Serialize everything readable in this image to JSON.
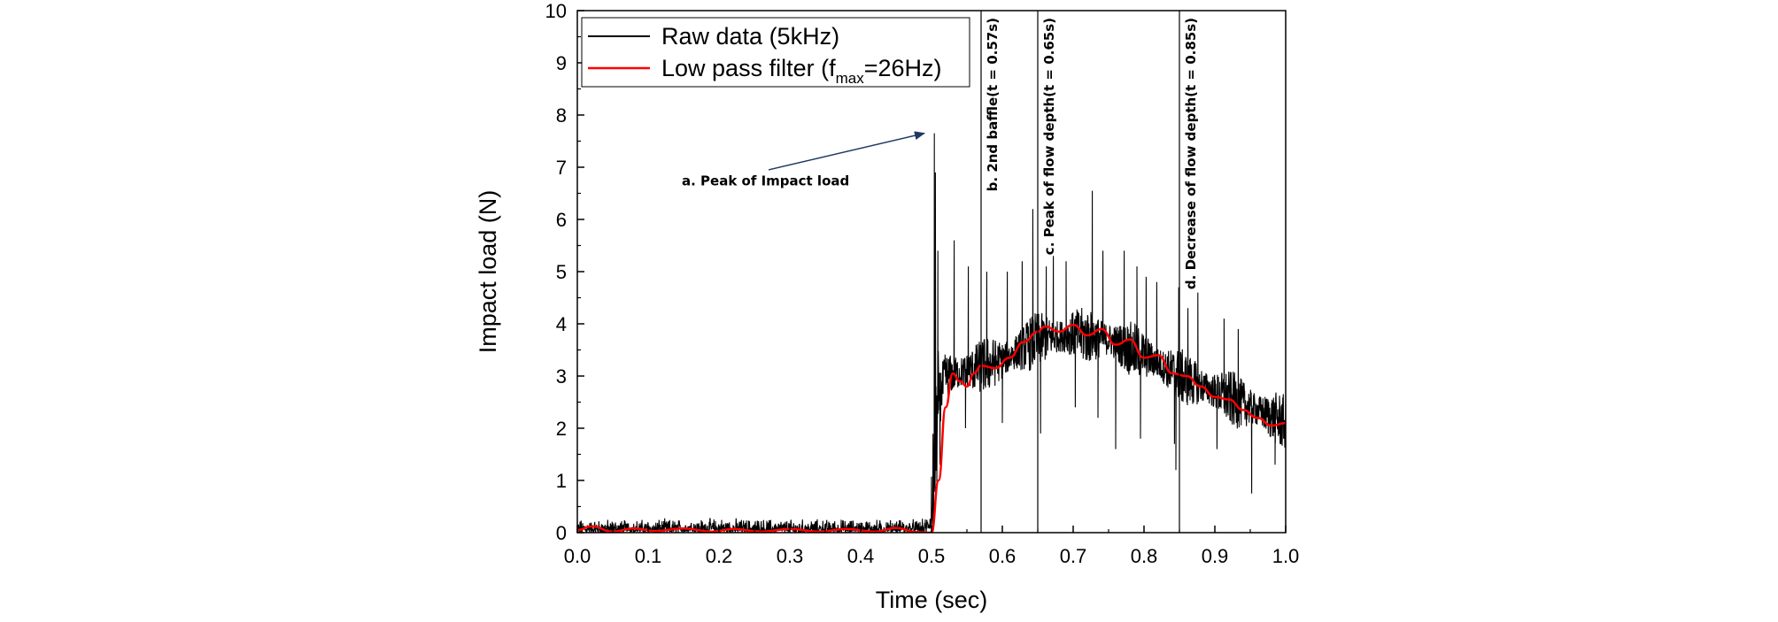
{
  "chart_data": {
    "type": "line",
    "xlabel": "Time (sec)",
    "ylabel": "Impact load (N)",
    "xlim": [
      0.0,
      1.0
    ],
    "ylim": [
      0,
      10
    ],
    "x_ticks": [
      "0.0",
      "0.1",
      "0.2",
      "0.3",
      "0.4",
      "0.5",
      "0.6",
      "0.7",
      "0.8",
      "0.9",
      "1.0"
    ],
    "y_ticks": [
      "0",
      "1",
      "2",
      "3",
      "4",
      "5",
      "6",
      "7",
      "8",
      "9",
      "10"
    ],
    "grid": false,
    "legend_position": "top-left",
    "legend": {
      "raw": "Raw data (5kHz)",
      "lpf_main": "Low pass filter (f",
      "lpf_sub": "max",
      "lpf_tail": "=26Hz)"
    },
    "series": [
      {
        "name": "Raw data (5kHz)",
        "color": "#000000",
        "envelope": [
          {
            "x": 0.0,
            "y": 0.1
          },
          {
            "x": 0.1,
            "y": 0.1
          },
          {
            "x": 0.2,
            "y": 0.12
          },
          {
            "x": 0.3,
            "y": 0.1
          },
          {
            "x": 0.4,
            "y": 0.1
          },
          {
            "x": 0.49,
            "y": 0.1
          },
          {
            "x": 0.5,
            "y": 0.3
          },
          {
            "x": 0.51,
            "y": 2.5
          },
          {
            "x": 0.52,
            "y": 3.0
          },
          {
            "x": 0.55,
            "y": 3.1
          },
          {
            "x": 0.6,
            "y": 3.3
          },
          {
            "x": 0.65,
            "y": 3.7
          },
          {
            "x": 0.7,
            "y": 3.8
          },
          {
            "x": 0.75,
            "y": 3.7
          },
          {
            "x": 0.8,
            "y": 3.4
          },
          {
            "x": 0.85,
            "y": 3.0
          },
          {
            "x": 0.9,
            "y": 2.7
          },
          {
            "x": 0.95,
            "y": 2.4
          },
          {
            "x": 1.0,
            "y": 2.1
          }
        ],
        "spikes": [
          {
            "x": 0.504,
            "y": 7.65
          },
          {
            "x": 0.5055,
            "y": 6.9
          },
          {
            "x": 0.509,
            "y": 5.4
          },
          {
            "x": 0.532,
            "y": 5.6
          },
          {
            "x": 0.552,
            "y": 5.1
          },
          {
            "x": 0.578,
            "y": 5.0
          },
          {
            "x": 0.607,
            "y": 5.0
          },
          {
            "x": 0.628,
            "y": 5.2
          },
          {
            "x": 0.643,
            "y": 6.2
          },
          {
            "x": 0.662,
            "y": 5.1
          },
          {
            "x": 0.672,
            "y": 5.3
          },
          {
            "x": 0.69,
            "y": 5.2
          },
          {
            "x": 0.727,
            "y": 6.55
          },
          {
            "x": 0.742,
            "y": 5.4
          },
          {
            "x": 0.772,
            "y": 5.4
          },
          {
            "x": 0.79,
            "y": 5.1
          },
          {
            "x": 0.803,
            "y": 4.9
          },
          {
            "x": 0.818,
            "y": 4.8
          },
          {
            "x": 0.849,
            "y": 4.7
          },
          {
            "x": 0.862,
            "y": 4.3
          },
          {
            "x": 0.876,
            "y": 4.6
          },
          {
            "x": 0.913,
            "y": 4.1
          },
          {
            "x": 0.933,
            "y": 3.9
          }
        ],
        "dips": [
          {
            "x": 0.512,
            "y": 1.3
          },
          {
            "x": 0.548,
            "y": 2.0
          },
          {
            "x": 0.6,
            "y": 2.1
          },
          {
            "x": 0.654,
            "y": 1.9
          },
          {
            "x": 0.703,
            "y": 2.4
          },
          {
            "x": 0.735,
            "y": 2.2
          },
          {
            "x": 0.76,
            "y": 1.6
          },
          {
            "x": 0.795,
            "y": 1.8
          },
          {
            "x": 0.843,
            "y": 1.7
          },
          {
            "x": 0.845,
            "y": 1.2
          },
          {
            "x": 0.903,
            "y": 1.6
          },
          {
            "x": 0.952,
            "y": 0.75
          },
          {
            "x": 0.985,
            "y": 1.3
          }
        ]
      },
      {
        "name": "Low pass filter (fmax=26Hz)",
        "color": "#ff0000",
        "points": [
          {
            "x": 0.0,
            "y": 0.05
          },
          {
            "x": 0.02,
            "y": 0.12
          },
          {
            "x": 0.05,
            "y": 0.02
          },
          {
            "x": 0.08,
            "y": 0.08
          },
          {
            "x": 0.11,
            "y": 0.03
          },
          {
            "x": 0.15,
            "y": 0.08
          },
          {
            "x": 0.19,
            "y": 0.02
          },
          {
            "x": 0.22,
            "y": 0.07
          },
          {
            "x": 0.26,
            "y": 0.02
          },
          {
            "x": 0.3,
            "y": 0.07
          },
          {
            "x": 0.34,
            "y": 0.02
          },
          {
            "x": 0.38,
            "y": 0.07
          },
          {
            "x": 0.42,
            "y": 0.02
          },
          {
            "x": 0.45,
            "y": 0.09
          },
          {
            "x": 0.48,
            "y": 0.01
          },
          {
            "x": 0.5,
            "y": 0.0
          },
          {
            "x": 0.51,
            "y": 1.0
          },
          {
            "x": 0.52,
            "y": 2.4
          },
          {
            "x": 0.53,
            "y": 3.05
          },
          {
            "x": 0.54,
            "y": 2.9
          },
          {
            "x": 0.55,
            "y": 2.8
          },
          {
            "x": 0.56,
            "y": 3.05
          },
          {
            "x": 0.57,
            "y": 3.2
          },
          {
            "x": 0.59,
            "y": 3.15
          },
          {
            "x": 0.61,
            "y": 3.35
          },
          {
            "x": 0.63,
            "y": 3.65
          },
          {
            "x": 0.65,
            "y": 3.85
          },
          {
            "x": 0.66,
            "y": 3.95
          },
          {
            "x": 0.68,
            "y": 3.85
          },
          {
            "x": 0.7,
            "y": 3.98
          },
          {
            "x": 0.72,
            "y": 3.78
          },
          {
            "x": 0.74,
            "y": 3.9
          },
          {
            "x": 0.76,
            "y": 3.6
          },
          {
            "x": 0.78,
            "y": 3.7
          },
          {
            "x": 0.8,
            "y": 3.35
          },
          {
            "x": 0.82,
            "y": 3.4
          },
          {
            "x": 0.84,
            "y": 3.05
          },
          {
            "x": 0.86,
            "y": 3.0
          },
          {
            "x": 0.88,
            "y": 2.8
          },
          {
            "x": 0.9,
            "y": 2.6
          },
          {
            "x": 0.92,
            "y": 2.55
          },
          {
            "x": 0.94,
            "y": 2.35
          },
          {
            "x": 0.96,
            "y": 2.2
          },
          {
            "x": 0.98,
            "y": 2.05
          },
          {
            "x": 1.0,
            "y": 2.1
          }
        ]
      }
    ],
    "vlines": [
      {
        "x": 0.57,
        "label": "b. 2nd baffle(t = 0.57s)"
      },
      {
        "x": 0.65,
        "label": "c. Peak of flow depth(t = 0.65s)"
      },
      {
        "x": 0.85,
        "label": "d. Decrease of flow depth(t = 0.85s)"
      }
    ],
    "annotation": {
      "text": "a. Peak of Impact load",
      "text_at": {
        "x": 0.27,
        "y": 6.65
      },
      "arrow_from": {
        "x": 0.27,
        "y": 6.95
      },
      "arrow_to": {
        "x": 0.49,
        "y": 7.65
      }
    }
  }
}
